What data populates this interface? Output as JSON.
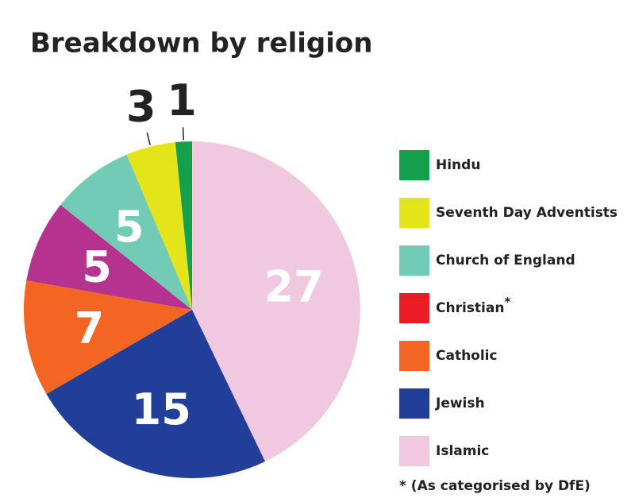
{
  "chart_data": {
    "type": "pie",
    "title": "Breakdown by religion",
    "categories": [
      "Hindu",
      "Seventh Day Adventists",
      "Church of England",
      "Christian",
      "Catholic",
      "Jewish",
      "Islamic"
    ],
    "values": [
      1,
      3,
      5,
      5,
      7,
      15,
      27
    ],
    "colors": [
      "#14a04a",
      "#e4e41a",
      "#72cbb5",
      "#b5338e",
      "#f26522",
      "#213f99",
      "#f0c8df"
    ],
    "swatch_colors": [
      "#14a04a",
      "#e4e41a",
      "#72cbb5",
      "#ec1c24",
      "#f26522",
      "#213f99",
      "#f0c8df"
    ],
    "footnote_marker": "*",
    "footnote_category": 3,
    "footnote": "* (As categorised by DfE)"
  }
}
